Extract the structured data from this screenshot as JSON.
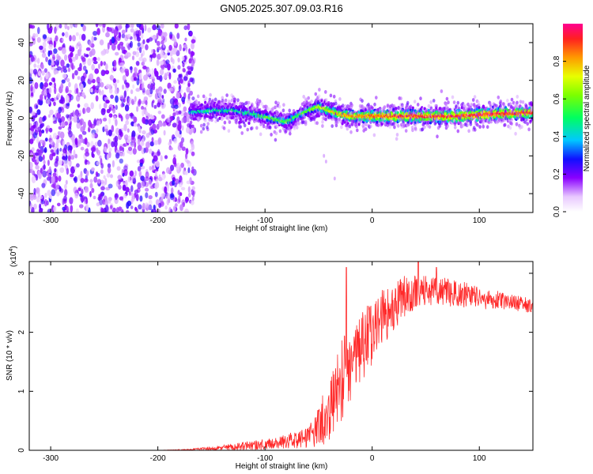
{
  "title": "GN05.2025.307.09.03.R16",
  "chart_data": [
    {
      "type": "heatmap",
      "xlabel": "Height of straight line (km)",
      "ylabel": "Frequency (Hz)",
      "xlim": [
        -320,
        150
      ],
      "ylim": [
        -50,
        50
      ],
      "xticks": [
        -300,
        -200,
        -100,
        0,
        100
      ],
      "yticks": [
        -40,
        -20,
        0,
        20,
        40
      ],
      "xtick_labels": [
        "-300",
        "-200",
        "-100",
        "0",
        "100"
      ],
      "ytick_labels": [
        "-40",
        "-20",
        "0",
        "20",
        "40"
      ],
      "noise_region_x": [
        -320,
        -170
      ],
      "ridge": {
        "x": [
          -170,
          -150,
          -130,
          -110,
          -95,
          -80,
          -70,
          -60,
          -50,
          -40,
          -30,
          -20,
          -10,
          0,
          20,
          50,
          80,
          110,
          150
        ],
        "frequency": [
          3,
          4,
          4,
          2,
          0,
          -2,
          1,
          4,
          6,
          4,
          2,
          1,
          1,
          1,
          1,
          1,
          1,
          2,
          3
        ],
        "amplitude": [
          0.45,
          0.5,
          0.5,
          0.55,
          0.6,
          0.6,
          0.6,
          0.6,
          0.7,
          0.75,
          0.8,
          0.85,
          0.85,
          0.88,
          0.92,
          0.93,
          0.94,
          0.96,
          0.9
        ]
      },
      "colorbar": {
        "label": "Normalized spectral amplitude",
        "range": [
          0,
          1
        ],
        "ticks": [
          0.0,
          0.2,
          0.4,
          0.6,
          0.8
        ],
        "tick_labels": [
          "0.0",
          "0.2",
          "0.4",
          "0.6",
          "0.8"
        ]
      }
    },
    {
      "type": "line",
      "xlabel": "Height of straight line (km)",
      "ylabel": "SNR (10 * v/v)",
      "exponent_label": "(x10",
      "exponent_sup": "4",
      "exponent_close": ")",
      "xlim": [
        -320,
        150
      ],
      "ylim": [
        0,
        3.2
      ],
      "xticks": [
        -300,
        -200,
        -100,
        0,
        100
      ],
      "yticks": [
        0,
        1,
        2,
        3
      ],
      "xtick_labels": [
        "-300",
        "-200",
        "-100",
        "0",
        "100"
      ],
      "ytick_labels": [
        "0",
        "1",
        "2",
        "3"
      ],
      "color": "#ff2a2a",
      "envelope": {
        "x": [
          -320,
          -200,
          -170,
          -150,
          -120,
          -100,
          -80,
          -60,
          -50,
          -40,
          -30,
          -25,
          -20,
          -10,
          0,
          10,
          20,
          30,
          40,
          50,
          70,
          90,
          110,
          130,
          150
        ],
        "mean": [
          0.0,
          0.0,
          0.01,
          0.03,
          0.07,
          0.1,
          0.15,
          0.22,
          0.4,
          0.7,
          1.1,
          1.35,
          1.5,
          1.75,
          2.0,
          2.25,
          2.45,
          2.6,
          2.7,
          2.72,
          2.68,
          2.62,
          2.56,
          2.5,
          2.45
        ],
        "spread": [
          0.0,
          0.0,
          0.01,
          0.03,
          0.06,
          0.08,
          0.1,
          0.15,
          0.3,
          0.45,
          0.55,
          0.6,
          0.55,
          0.5,
          0.45,
          0.4,
          0.35,
          0.3,
          0.25,
          0.22,
          0.2,
          0.18,
          0.15,
          0.12,
          0.1
        ]
      },
      "spikes": [
        {
          "x": -24,
          "y": 3.1
        },
        {
          "x": 43,
          "y": 3.2
        },
        {
          "x": 60,
          "y": 3.1
        }
      ]
    }
  ]
}
